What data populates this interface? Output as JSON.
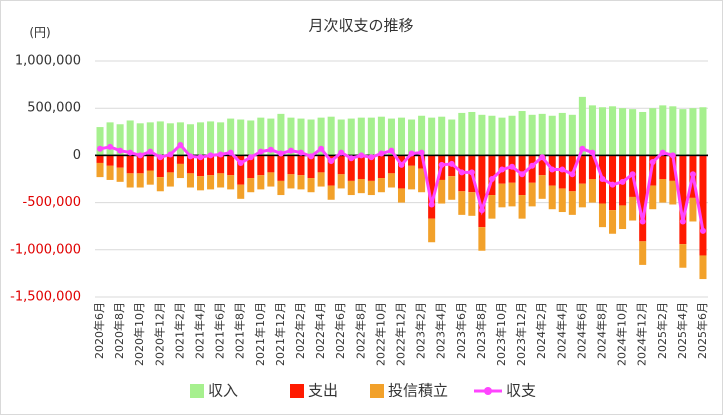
{
  "chart_data": {
    "type": "bar",
    "title": "月次収支の推移",
    "y_unit": "(円)",
    "categories": [
      "2020年6月",
      null,
      "2020年8月",
      null,
      "2020年10月",
      null,
      "2020年12月",
      null,
      "2021年2月",
      null,
      "2021年4月",
      null,
      "2021年6月",
      null,
      "2021年8月",
      null,
      "2021年10月",
      null,
      "2021年12月",
      null,
      "2022年2月",
      null,
      "2022年4月",
      null,
      "2022年6月",
      null,
      "2022年8月",
      null,
      "2022年10月",
      null,
      "2022年12月",
      null,
      "2023年2月",
      null,
      "2023年4月",
      null,
      "2023年6月",
      null,
      "2023年8月",
      null,
      "2023年10月",
      null,
      "2023年12月",
      null,
      "2024年2月",
      null,
      "2024年4月",
      null,
      "2024年6月",
      null,
      "2024年8月",
      null,
      "2024年10月",
      null,
      "2024年12月",
      null,
      "2025年2月",
      null,
      "2025年4月",
      null,
      "2025年6月"
    ],
    "series": [
      {
        "name": "収入",
        "color": "#a6f08e",
        "kind": "bar",
        "values": [
          300000,
          350000,
          330000,
          370000,
          340000,
          350000,
          360000,
          340000,
          350000,
          330000,
          350000,
          360000,
          350000,
          390000,
          380000,
          370000,
          400000,
          390000,
          440000,
          400000,
          390000,
          380000,
          400000,
          410000,
          380000,
          390000,
          400000,
          400000,
          410000,
          390000,
          400000,
          380000,
          420000,
          400000,
          410000,
          380000,
          450000,
          460000,
          430000,
          420000,
          400000,
          420000,
          470000,
          430000,
          440000,
          420000,
          450000,
          430000,
          620000,
          530000,
          510000,
          520000,
          500000,
          490000,
          460000,
          500000,
          530000,
          520000,
          490000,
          500000,
          510000
        ]
      },
      {
        "name": "支出",
        "color": "#ff1a00",
        "kind": "bar",
        "values": [
          -80000,
          -110000,
          -130000,
          -190000,
          -190000,
          -160000,
          -230000,
          -180000,
          -90000,
          -190000,
          -220000,
          -210000,
          -190000,
          -210000,
          -310000,
          -240000,
          -210000,
          -180000,
          -270000,
          -200000,
          -210000,
          -240000,
          -180000,
          -320000,
          -200000,
          -270000,
          -250000,
          -270000,
          -240000,
          -190000,
          -350000,
          -110000,
          -140000,
          -670000,
          -260000,
          -220000,
          -380000,
          -390000,
          -760000,
          -420000,
          -300000,
          -290000,
          -420000,
          -290000,
          -210000,
          -320000,
          -350000,
          -380000,
          -300000,
          -250000,
          -510000,
          -580000,
          -530000,
          -440000,
          -910000,
          -320000,
          -250000,
          -270000,
          -940000,
          -450000,
          -1060000
        ]
      },
      {
        "name": "投信積立",
        "color": "#f2a12a",
        "kind": "bar",
        "values": [
          -150000,
          -150000,
          -150000,
          -150000,
          -150000,
          -150000,
          -150000,
          -150000,
          -150000,
          -150000,
          -150000,
          -150000,
          -150000,
          -150000,
          -150000,
          -150000,
          -150000,
          -150000,
          -150000,
          -150000,
          -150000,
          -150000,
          -150000,
          -150000,
          -150000,
          -150000,
          -150000,
          -150000,
          -150000,
          -150000,
          -150000,
          -250000,
          -250000,
          -250000,
          -250000,
          -250000,
          -250000,
          -250000,
          -250000,
          -250000,
          -250000,
          -250000,
          -250000,
          -250000,
          -250000,
          -250000,
          -250000,
          -250000,
          -250000,
          -250000,
          -250000,
          -250000,
          -250000,
          -250000,
          -250000,
          -250000,
          -250000,
          -250000,
          -250000,
          -250000,
          -250000
        ]
      },
      {
        "name": "収支",
        "color": "#ff44ff",
        "kind": "line",
        "values": [
          70000,
          90000,
          50000,
          30000,
          0,
          40000,
          -20000,
          10000,
          110000,
          -10000,
          -20000,
          0,
          10000,
          30000,
          -80000,
          -20000,
          40000,
          60000,
          20000,
          50000,
          30000,
          -10000,
          70000,
          -60000,
          30000,
          -30000,
          0,
          -20000,
          20000,
          50000,
          -100000,
          20000,
          30000,
          -520000,
          -100000,
          -90000,
          -180000,
          -180000,
          -580000,
          -250000,
          -150000,
          -120000,
          -200000,
          -110000,
          -20000,
          -150000,
          -150000,
          -200000,
          70000,
          30000,
          -250000,
          -310000,
          -280000,
          -200000,
          -700000,
          -70000,
          30000,
          0,
          -700000,
          -200000,
          -800000
        ]
      }
    ],
    "ylim": [
      -1500000,
      1000000
    ],
    "yticks": [
      {
        "value": -1500000,
        "label": "-1,500,000"
      },
      {
        "value": -1000000,
        "label": "-1,000,000"
      },
      {
        "value": -500000,
        "label": "-500,000"
      },
      0,
      {
        "value": 500000,
        "label": "500,000"
      },
      {
        "value": 1000000,
        "label": "1,000,000"
      }
    ],
    "grid": true,
    "legend": "bottom"
  }
}
